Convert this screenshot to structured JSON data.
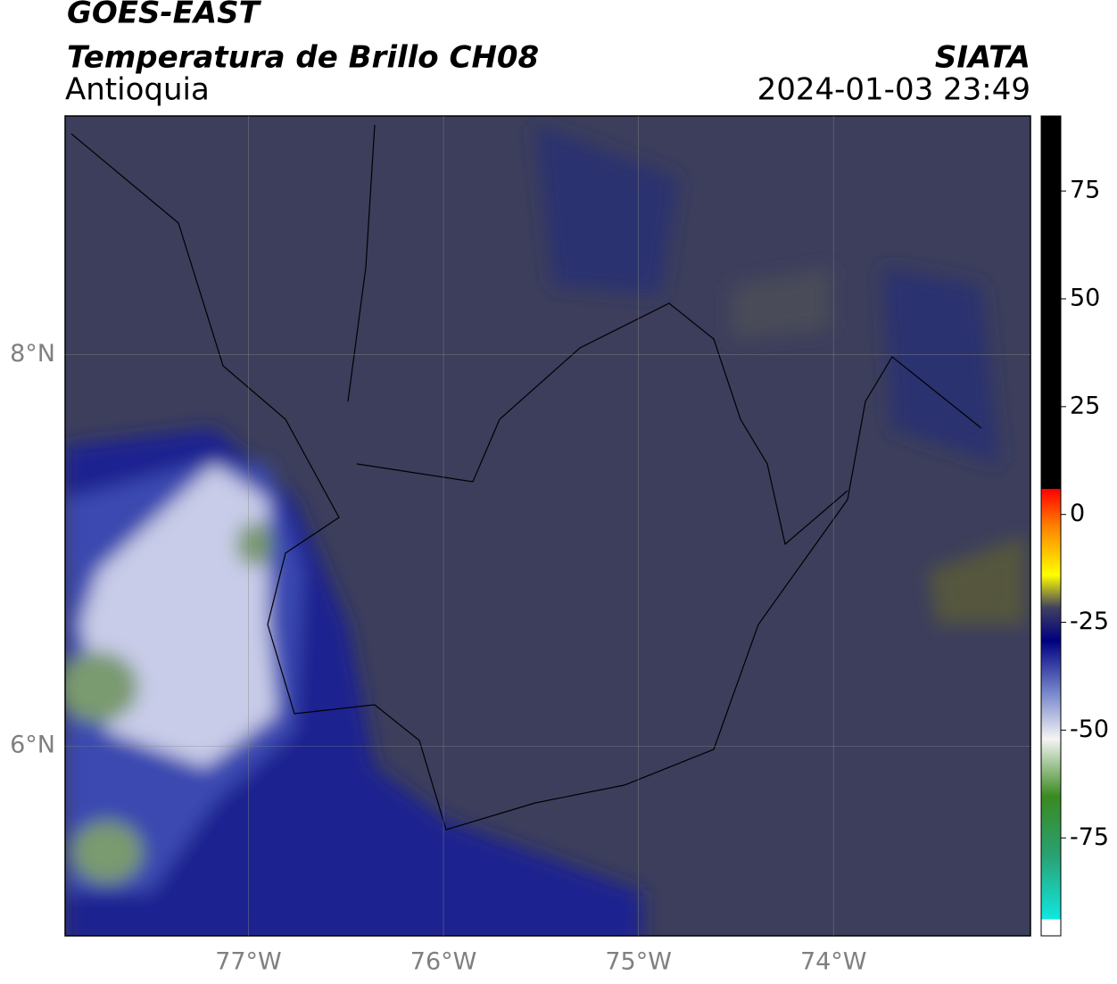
{
  "header": {
    "title": "GOES-EAST",
    "subtitle": "Temperatura de Brillo CH08",
    "region": "Antioquia",
    "source": "SIATA",
    "datetime": "2024-01-03 23:49"
  },
  "map": {
    "lonlim": [
      -77.94,
      -72.99
    ],
    "latlim": [
      5.03,
      9.22
    ],
    "lonticks": [
      {
        "value": -77,
        "label": "77°W"
      },
      {
        "value": -76,
        "label": "76°W"
      },
      {
        "value": -75,
        "label": "75°W"
      },
      {
        "value": -74,
        "label": "74°W"
      }
    ],
    "latticks": [
      {
        "value": 8,
        "label": "8°N"
      },
      {
        "value": 6,
        "label": "6°N"
      }
    ]
  },
  "colorbar": {
    "lim": [
      -97.7,
      92.4
    ],
    "ticks": [
      75,
      50,
      25,
      0,
      -25,
      -50,
      -75
    ]
  }
}
